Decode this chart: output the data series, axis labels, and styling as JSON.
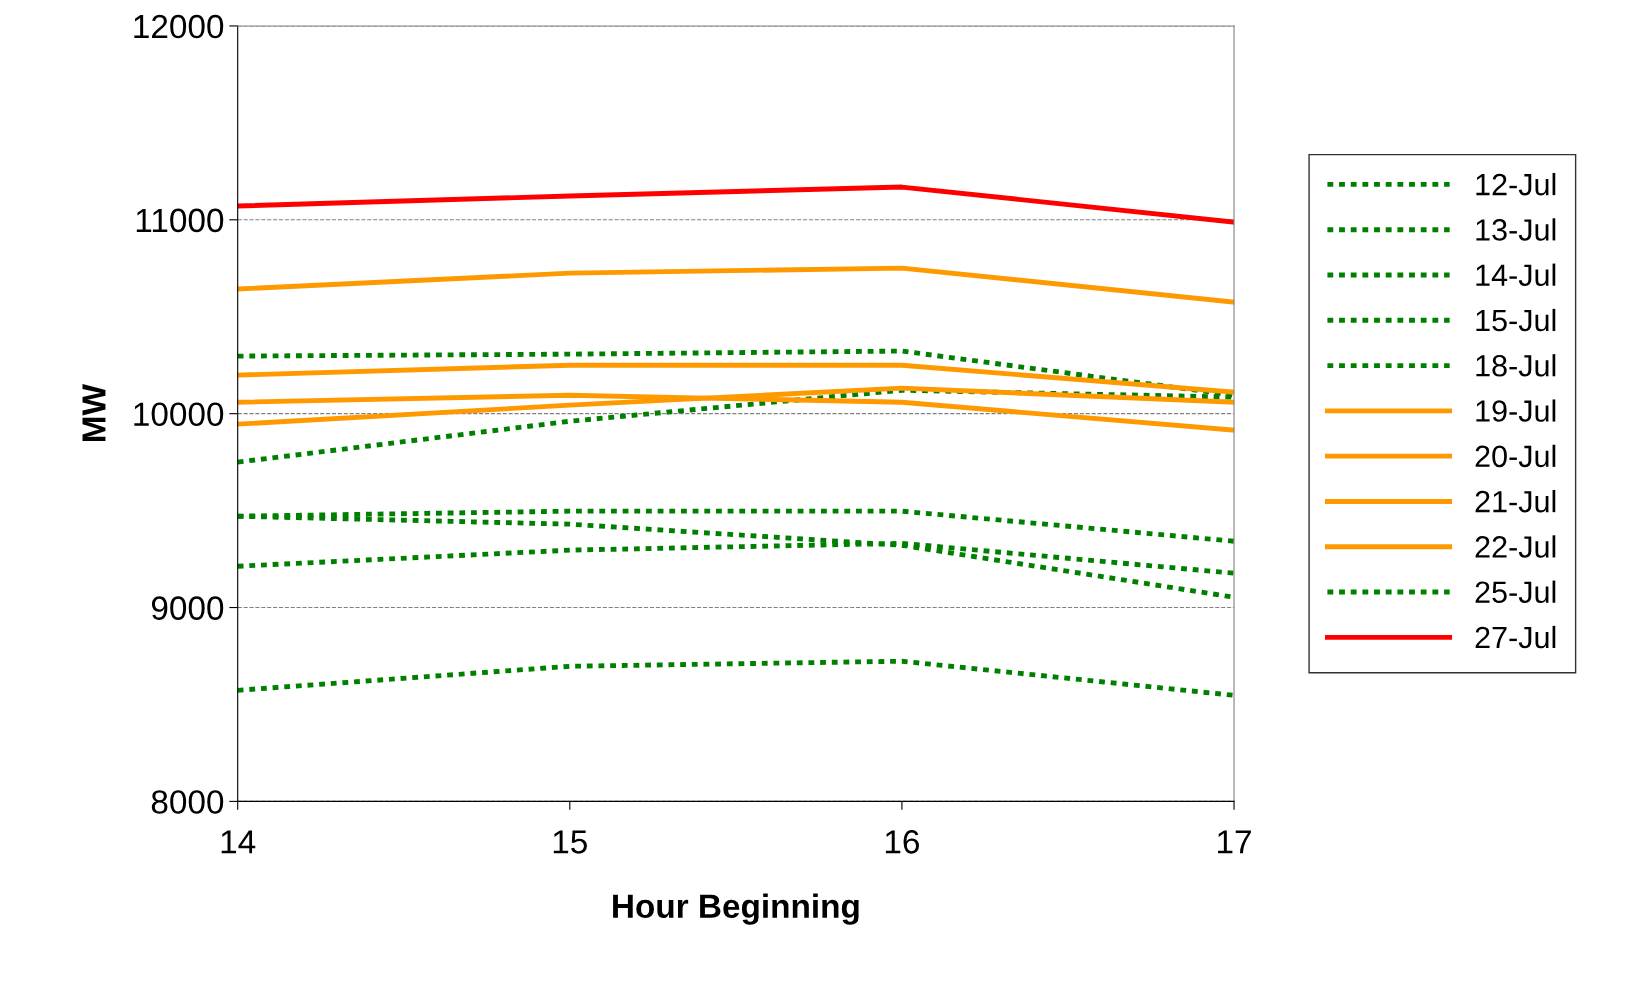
{
  "chart_data": {
    "type": "line",
    "xlabel": "Hour Beginning",
    "ylabel": "MW",
    "x": [
      14,
      15,
      16,
      17
    ],
    "xlim": [
      14,
      17
    ],
    "xticks": [
      14,
      15,
      16,
      17
    ],
    "ylim": [
      8000,
      12000
    ],
    "yticks": [
      8000,
      9000,
      10000,
      11000,
      12000
    ],
    "grid": "y",
    "legend": "right",
    "marker": "none",
    "series": [
      {
        "name": "12-Jul",
        "color": "#008000",
        "line_style": "dotted",
        "values": [
          10297,
          10307,
          10323,
          10095
        ]
      },
      {
        "name": "13-Jul",
        "color": "#008000",
        "line_style": "dotted",
        "values": [
          9750,
          9961,
          10121,
          10085
        ]
      },
      {
        "name": "14-Jul",
        "color": "#008000",
        "line_style": "dotted",
        "values": [
          9471,
          9497,
          9497,
          9342
        ]
      },
      {
        "name": "15-Jul",
        "color": "#008000",
        "line_style": "dotted",
        "values": [
          9471,
          9430,
          9321,
          9053
        ]
      },
      {
        "name": "18-Jul",
        "color": "#008000",
        "line_style": "dotted",
        "values": [
          9213,
          9296,
          9331,
          9177
        ]
      },
      {
        "name": "19-Jul",
        "color": "#ff9900",
        "line_style": "solid",
        "values": [
          10643,
          10725,
          10751,
          10575
        ]
      },
      {
        "name": "20-Jul",
        "color": "#ff9900",
        "line_style": "solid",
        "values": [
          10199,
          10250,
          10250,
          10111
        ]
      },
      {
        "name": "21-Jul",
        "color": "#ff9900",
        "line_style": "solid",
        "values": [
          10059,
          10095,
          10059,
          9915
        ]
      },
      {
        "name": "22-Jul",
        "color": "#ff9900",
        "line_style": "solid",
        "values": [
          9946,
          10044,
          10132,
          10059
        ]
      },
      {
        "name": "25-Jul",
        "color": "#008000",
        "line_style": "dotted",
        "values": [
          8573,
          8697,
          8723,
          8547
        ]
      },
      {
        "name": "27-Jul",
        "color": "#ff0000",
        "line_style": "solid",
        "values": [
          11071,
          11123,
          11169,
          10988
        ]
      }
    ]
  }
}
